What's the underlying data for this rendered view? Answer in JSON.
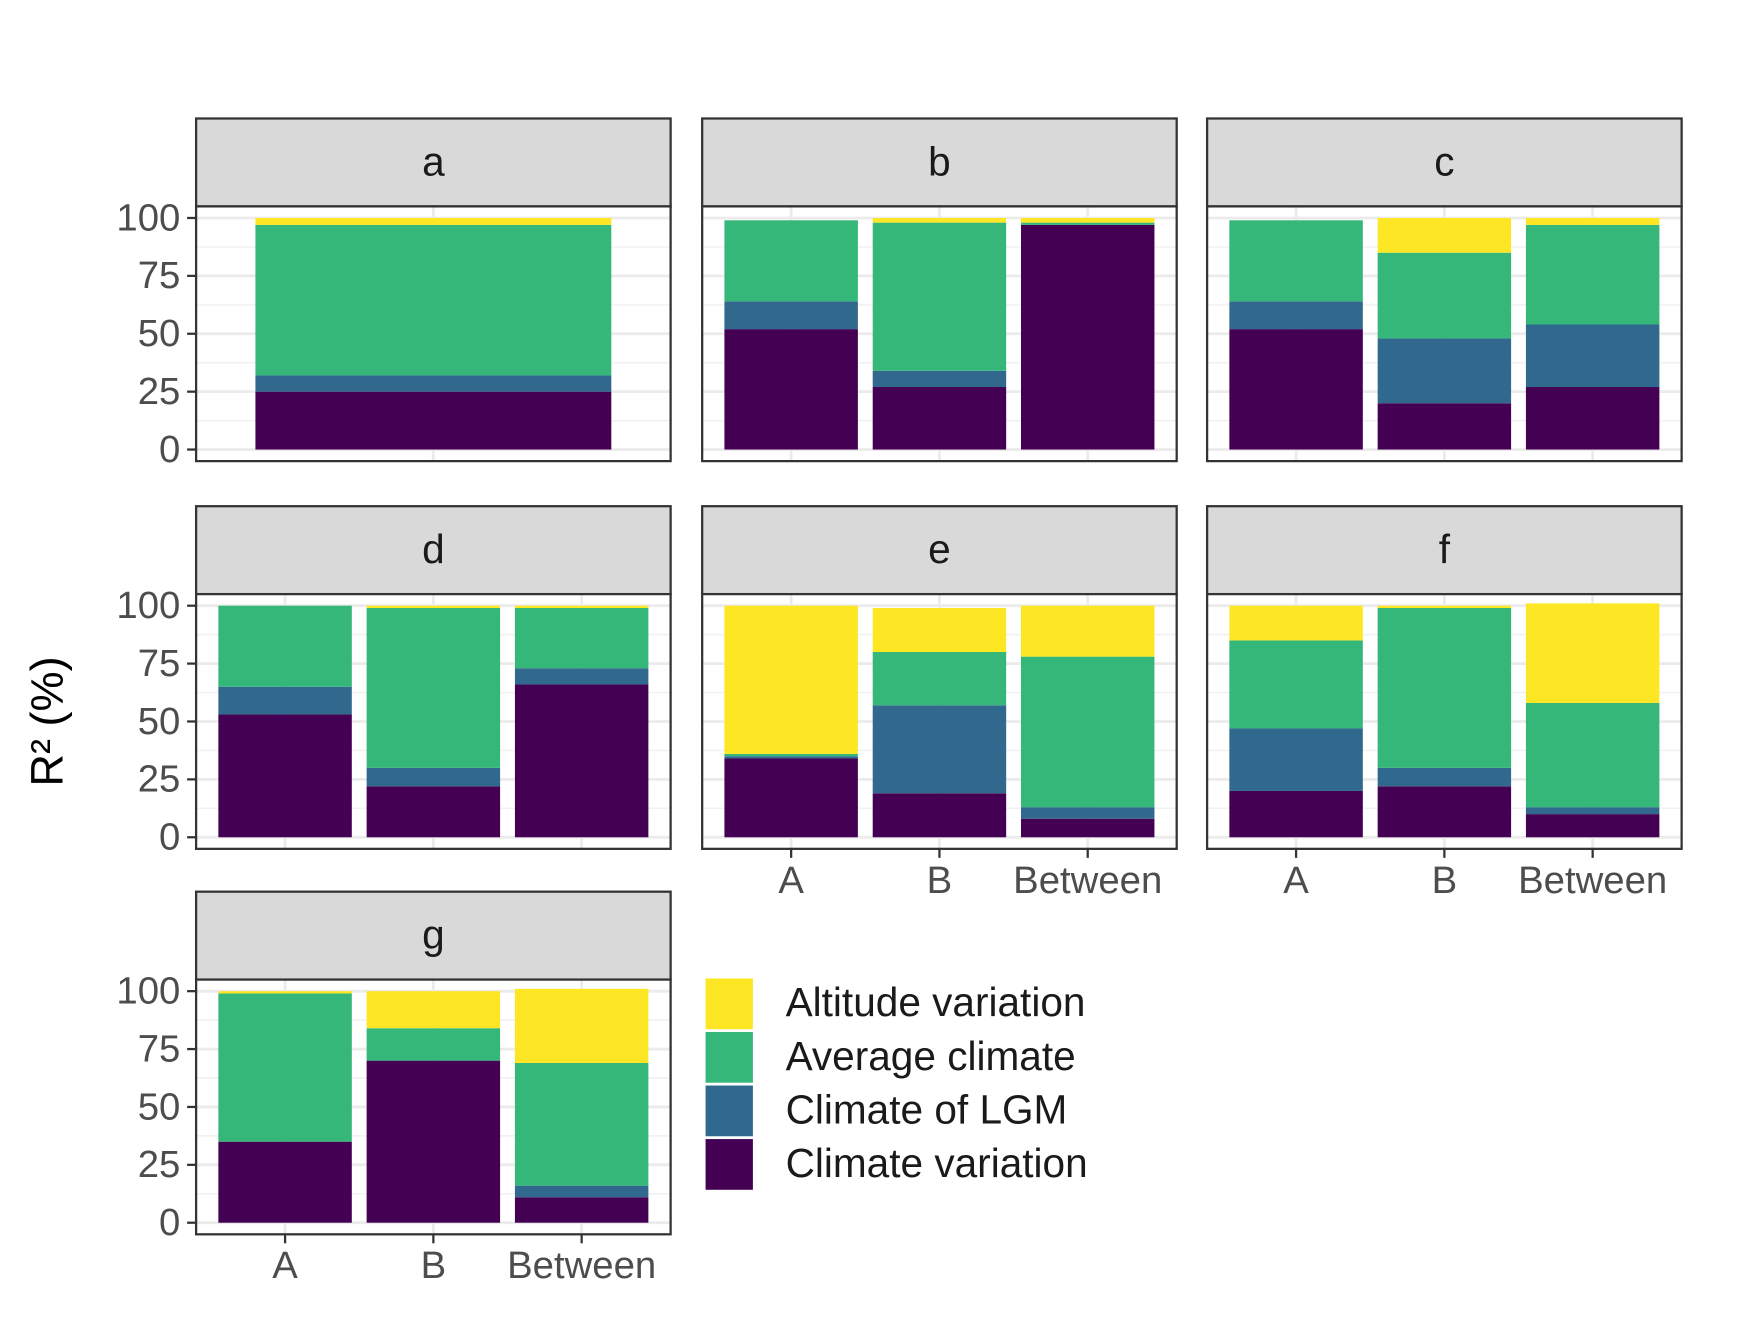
{
  "chart_data": {
    "type": "bar",
    "stacked": true,
    "ylabel": "R² (%)",
    "ylim": [
      -5,
      105
    ],
    "yticks": [
      0,
      25,
      50,
      75,
      100
    ],
    "grid": true,
    "series": [
      {
        "name": "Altitude variation",
        "color": "#fde725"
      },
      {
        "name": "Average climate",
        "color": "#35b779"
      },
      {
        "name": "Climate of LGM",
        "color": "#31688e"
      },
      {
        "name": "Climate variation",
        "color": "#440154"
      }
    ],
    "facets": [
      {
        "title": "a",
        "categories": [
          null
        ],
        "values": [
          [
            3
          ],
          [
            65
          ],
          [
            7
          ],
          [
            25
          ]
        ]
      },
      {
        "title": "b",
        "categories": [
          "A",
          "B",
          "Between"
        ],
        "values": [
          [
            0,
            2,
            2
          ],
          [
            35,
            64,
            1
          ],
          [
            12,
            7,
            0
          ],
          [
            52,
            27,
            97
          ]
        ]
      },
      {
        "title": "c",
        "categories": [
          "A",
          "B",
          "Between"
        ],
        "values": [
          [
            0,
            15,
            3
          ],
          [
            35,
            37,
            43
          ],
          [
            12,
            28,
            27
          ],
          [
            52,
            20,
            27
          ]
        ]
      },
      {
        "title": "d",
        "categories": [
          "A",
          "B",
          "Between"
        ],
        "values": [
          [
            0,
            1,
            1
          ],
          [
            35,
            69,
            26
          ],
          [
            12,
            8,
            7
          ],
          [
            53,
            22,
            66
          ]
        ]
      },
      {
        "title": "e",
        "categories": [
          "A",
          "B",
          "Between"
        ],
        "values": [
          [
            64,
            19,
            22
          ],
          [
            1,
            23,
            65
          ],
          [
            1,
            38,
            5
          ],
          [
            34,
            19,
            8
          ]
        ]
      },
      {
        "title": "f",
        "categories": [
          "A",
          "B",
          "Between"
        ],
        "values": [
          [
            15,
            1,
            43
          ],
          [
            38,
            69,
            45
          ],
          [
            27,
            8,
            3
          ],
          [
            20,
            22,
            10
          ]
        ]
      },
      {
        "title": "g",
        "categories": [
          "A",
          "B",
          "Between"
        ],
        "values": [
          [
            1,
            16,
            32
          ],
          [
            64,
            14,
            53
          ],
          [
            0,
            0,
            5
          ],
          [
            35,
            70,
            11
          ]
        ]
      }
    ]
  }
}
